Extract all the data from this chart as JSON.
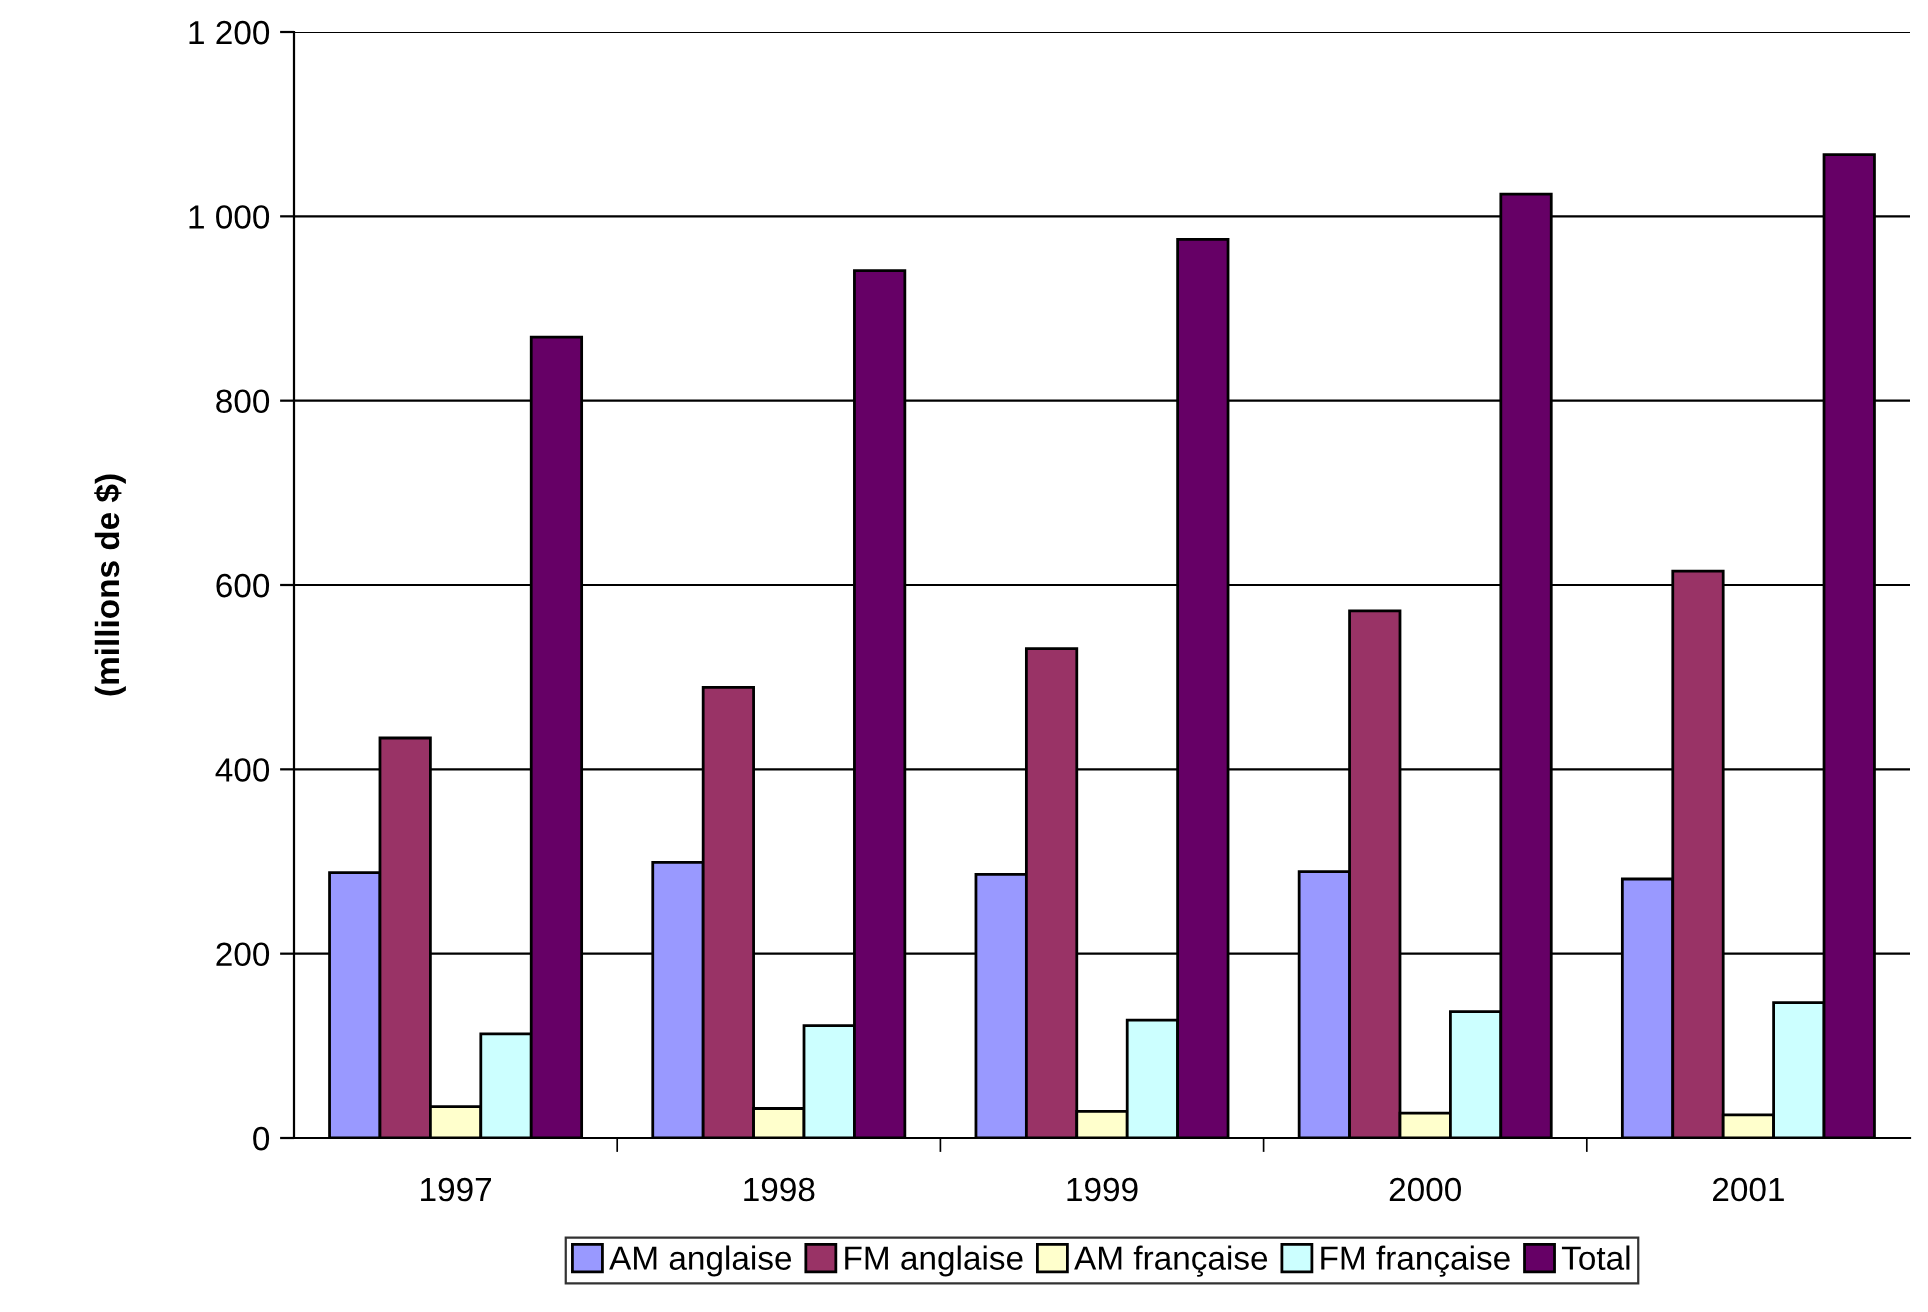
{
  "chart_data": {
    "type": "bar",
    "ylabel": "(millions de $)",
    "categories": [
      "1997",
      "1998",
      "1999",
      "2000",
      "2001"
    ],
    "series": [
      {
        "name": "AM anglaise",
        "color": "#9999ff",
        "values": [
          288,
          299,
          286,
          289,
          281
        ]
      },
      {
        "name": "FM anglaise",
        "color": "#993366",
        "values": [
          434,
          489,
          531,
          572,
          615
        ]
      },
      {
        "name": "AM française",
        "color": "#ffffcc",
        "values": [
          34,
          32,
          29,
          27,
          25
        ]
      },
      {
        "name": "FM française",
        "color": "#ccffff",
        "values": [
          113,
          122,
          128,
          137,
          147
        ]
      },
      {
        "name": "Total",
        "color": "#660066",
        "values": [
          869,
          941,
          975,
          1024,
          1067
        ]
      }
    ],
    "ylim": [
      0,
      1200
    ],
    "yticks": [
      0,
      200,
      400,
      600,
      800,
      {
        "value": 1000,
        "label": "1 000"
      },
      {
        "value": 1200,
        "label": "1 200"
      }
    ],
    "grid": "y",
    "legend": "bottom"
  }
}
